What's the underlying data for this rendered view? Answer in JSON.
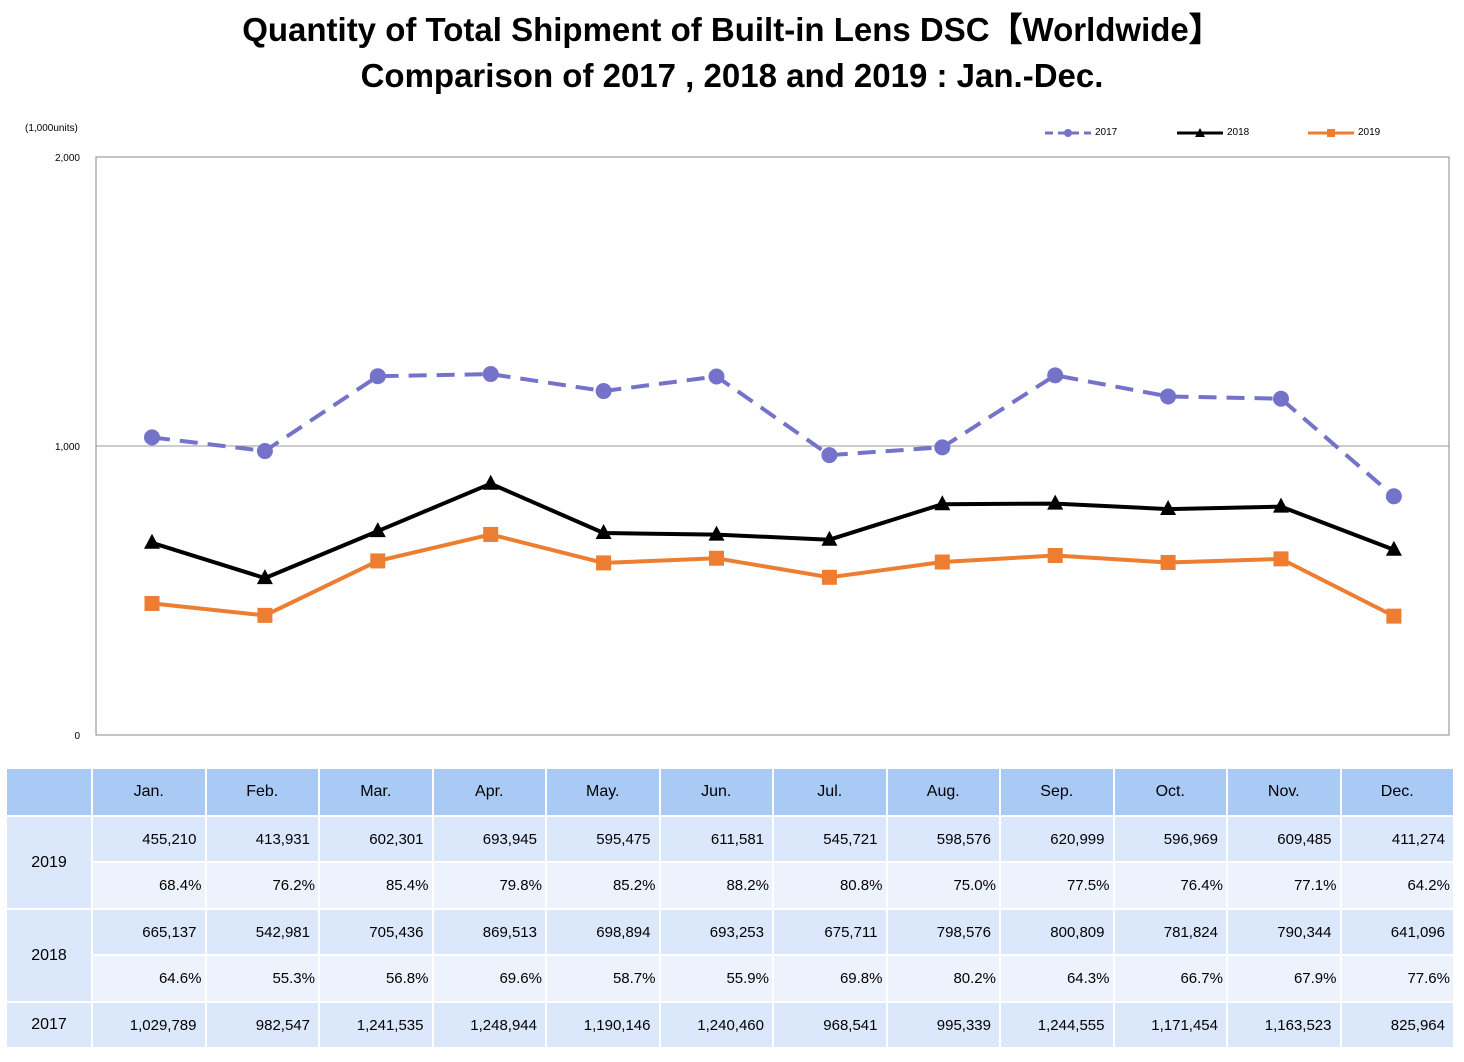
{
  "chart_data": {
    "type": "line",
    "title": "Quantity of Total Shipment of Built-in Lens DSC【Worldwide】",
    "subtitle": "Comparison of 2017 , 2018 and 2019 : Jan.-Dec.",
    "unit_label": "(1,000units)",
    "categories": [
      "Jan.",
      "Feb.",
      "Mar.",
      "Apr.",
      "May.",
      "Jun.",
      "Jul.",
      "Aug.",
      "Sep.",
      "Oct.",
      "Nov.",
      "Dec."
    ],
    "ylim": [
      0,
      2000
    ],
    "yticks": [
      "0",
      "1,000",
      "2,000"
    ],
    "ytick_values": [
      0,
      1000,
      2000
    ],
    "grid": "horizontal line at 1,000",
    "legend_position": "top-right",
    "series": [
      {
        "name": "2017",
        "color": "#7473c9",
        "line_style": "dashed",
        "marker": "circle",
        "values": [
          1029.789,
          982.547,
          1241.535,
          1248.944,
          1190.146,
          1240.46,
          968.541,
          995.339,
          1244.555,
          1171.454,
          1163.523,
          825.964
        ]
      },
      {
        "name": "2018",
        "color": "#000000",
        "line_style": "solid",
        "marker": "triangle",
        "values": [
          665.137,
          542.981,
          705.436,
          869.513,
          698.894,
          693.253,
          675.711,
          798.576,
          800.809,
          781.824,
          790.344,
          641.096
        ]
      },
      {
        "name": "2019",
        "color": "#ed7d31",
        "line_style": "solid",
        "marker": "square",
        "values": [
          455.21,
          413.931,
          602.301,
          693.945,
          595.475,
          611.581,
          545.721,
          598.576,
          620.999,
          596.969,
          609.485,
          411.274
        ]
      }
    ]
  },
  "table": {
    "columns": [
      "Jan.",
      "Feb.",
      "Mar.",
      "Apr.",
      "May.",
      "Jun.",
      "Jul.",
      "Aug.",
      "Sep.",
      "Oct.",
      "Nov.",
      "Dec."
    ],
    "rows": [
      {
        "year": "2019",
        "values": [
          "455,210",
          "413,931",
          "602,301",
          "693,945",
          "595,475",
          "611,581",
          "545,721",
          "598,576",
          "620,999",
          "596,969",
          "609,485",
          "411,274"
        ],
        "percents": [
          "68.4%",
          "76.2%",
          "85.4%",
          "79.8%",
          "85.2%",
          "88.2%",
          "80.8%",
          "75.0%",
          "77.5%",
          "76.4%",
          "77.1%",
          "64.2%"
        ]
      },
      {
        "year": "2018",
        "values": [
          "665,137",
          "542,981",
          "705,436",
          "869,513",
          "698,894",
          "693,253",
          "675,711",
          "798,576",
          "800,809",
          "781,824",
          "790,344",
          "641,096"
        ],
        "percents": [
          "64.6%",
          "55.3%",
          "56.8%",
          "69.6%",
          "58.7%",
          "55.9%",
          "69.8%",
          "80.2%",
          "64.3%",
          "66.7%",
          "67.9%",
          "77.6%"
        ]
      },
      {
        "year": "2017",
        "values": [
          "1,029,789",
          "982,547",
          "1,241,535",
          "1,248,944",
          "1,190,146",
          "1,240,460",
          "968,541",
          "995,339",
          "1,244,555",
          "1,171,454",
          "1,163,523",
          "825,964"
        ]
      }
    ]
  }
}
